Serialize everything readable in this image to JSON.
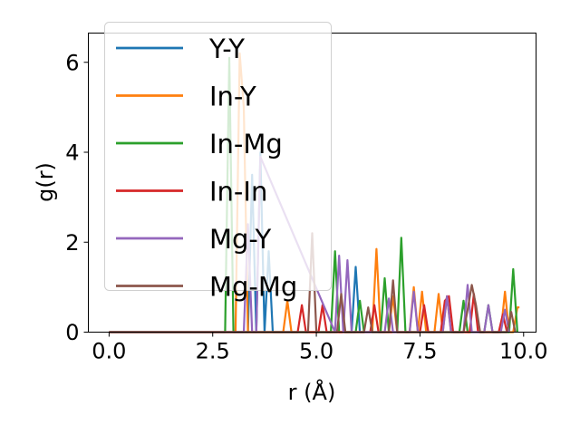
{
  "chart_data": {
    "type": "line",
    "xlabel": "r (Å)",
    "ylabel": "g(r)",
    "xlim": [
      -0.5,
      10.3
    ],
    "ylim": [
      0,
      6.65
    ],
    "xticks": [
      0.0,
      2.5,
      5.0,
      7.5,
      10.0
    ],
    "xtick_labels": [
      "0.0",
      "2.5",
      "5.0",
      "7.5",
      "10.0"
    ],
    "yticks": [
      0,
      2,
      4,
      6
    ],
    "ytick_labels": [
      "0",
      "2",
      "4",
      "6"
    ],
    "grid": false,
    "legend_position": "upper-left",
    "series": [
      {
        "name": "Y-Y",
        "color": "#1f77b4",
        "x": [
          0.0,
          3.35,
          3.45,
          3.55,
          3.65,
          3.75,
          3.85,
          3.95,
          5.85,
          5.95,
          6.05,
          6.15
        ],
        "y": [
          0,
          0,
          3.5,
          0,
          4.0,
          0,
          1.8,
          0,
          0,
          1.45,
          0,
          0
        ]
      },
      {
        "name": "In-Y",
        "color": "#ff7f0e",
        "x": [
          0.0,
          3.05,
          3.15,
          3.25,
          3.35,
          4.2,
          4.3,
          4.4,
          6.35,
          6.45,
          6.55,
          6.75,
          6.85,
          6.95,
          7.25,
          7.35,
          7.45,
          7.55,
          7.65,
          7.75,
          7.85,
          7.95,
          8.05,
          8.15,
          8.25,
          8.35,
          9.45,
          9.55,
          9.65,
          9.75,
          9.85,
          9.9
        ],
        "y": [
          0,
          0,
          6.2,
          5.0,
          0,
          0,
          0.7,
          0,
          0,
          1.85,
          0,
          0,
          0.8,
          0,
          0,
          1.0,
          0,
          0.9,
          0,
          0,
          0,
          0.85,
          0,
          0.8,
          0,
          0,
          0,
          0.9,
          0,
          0,
          0.55,
          0.55
        ]
      },
      {
        "name": "In-Mg",
        "color": "#2ca02c",
        "x": [
          0.0,
          2.8,
          2.9,
          3.0,
          5.35,
          5.45,
          5.55,
          5.65,
          5.95,
          6.05,
          6.15,
          6.55,
          6.65,
          6.75,
          6.95,
          7.05,
          7.15,
          8.45,
          8.55,
          8.65,
          9.05,
          9.15,
          9.25,
          9.35,
          9.65,
          9.75,
          9.85
        ],
        "y": [
          0,
          0,
          6.1,
          0,
          0,
          1.8,
          0,
          0,
          0,
          0.7,
          0,
          0,
          1.2,
          0,
          0,
          2.1,
          0,
          0,
          0.7,
          0,
          0,
          0.6,
          0,
          0,
          0,
          1.4,
          0
        ]
      },
      {
        "name": "In-In",
        "color": "#d62728",
        "x": [
          0.0,
          4.55,
          4.65,
          4.75,
          5.05,
          5.15,
          5.25,
          6.3,
          6.4,
          6.5,
          7.5,
          7.6,
          7.7,
          8.0,
          8.1,
          8.2,
          8.3,
          8.7,
          8.8,
          8.9,
          9.4,
          9.5,
          9.6
        ],
        "y": [
          0,
          0,
          0.6,
          0,
          0,
          0.6,
          0,
          0,
          0.6,
          0,
          0,
          0.6,
          0,
          0,
          0.7,
          0.8,
          0,
          0,
          0.85,
          0,
          0,
          0.4,
          0
        ]
      },
      {
        "name": "Mg-Y",
        "color": "#9467bd",
        "x": [
          0.0,
          3.25,
          3.35,
          3.45,
          3.55,
          3.65,
          5.45,
          5.55,
          5.65,
          5.75,
          5.85,
          5.95,
          6.65,
          6.75,
          6.85,
          7.25,
          7.35,
          7.45,
          8.05,
          8.15,
          8.25,
          8.55,
          8.65,
          8.75,
          9.05,
          9.15,
          9.25,
          9.45,
          9.55,
          9.65
        ],
        "y": [
          0,
          0,
          2.4,
          0,
          0,
          3.9,
          0,
          1.7,
          0,
          1.6,
          0,
          0,
          0,
          0.75,
          0,
          0,
          0.9,
          0,
          0,
          0.8,
          0,
          0,
          1.05,
          0,
          0,
          0.6,
          0,
          0,
          0.5,
          0
        ]
      },
      {
        "name": "Mg-Mg",
        "color": "#8c564b",
        "x": [
          0.0,
          4.8,
          4.9,
          5.0,
          5.5,
          5.6,
          5.7,
          6.15,
          6.25,
          6.35,
          6.75,
          6.85,
          6.95,
          8.55,
          8.65,
          8.75,
          8.85,
          8.95,
          9.6,
          9.7,
          9.8
        ],
        "y": [
          0,
          0,
          2.2,
          0,
          0,
          0.85,
          0,
          0,
          0.55,
          0,
          0,
          1.15,
          0,
          0,
          0.5,
          1.05,
          0.6,
          0,
          0,
          0.45,
          0
        ]
      }
    ]
  }
}
